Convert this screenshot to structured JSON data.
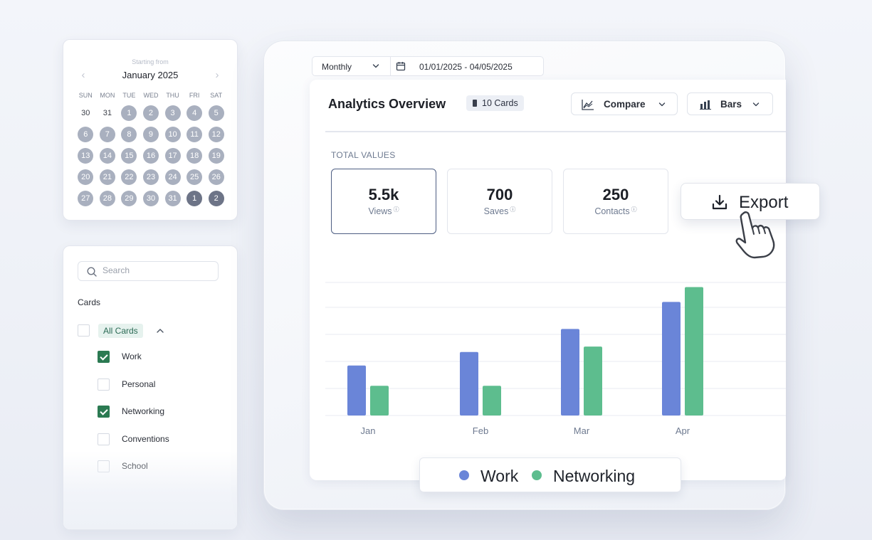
{
  "calendar": {
    "subtitle": "Starting from",
    "month_label": "January 2025",
    "weekdays": [
      "SUN",
      "MON",
      "TUE",
      "WED",
      "THU",
      "FRI",
      "SAT"
    ],
    "days": [
      {
        "d": "30",
        "state": "out"
      },
      {
        "d": "31",
        "state": "out"
      },
      {
        "d": "1",
        "state": "in"
      },
      {
        "d": "2",
        "state": "in"
      },
      {
        "d": "3",
        "state": "in"
      },
      {
        "d": "4",
        "state": "in"
      },
      {
        "d": "5",
        "state": "in"
      },
      {
        "d": "6",
        "state": "in"
      },
      {
        "d": "7",
        "state": "in"
      },
      {
        "d": "8",
        "state": "in"
      },
      {
        "d": "9",
        "state": "in"
      },
      {
        "d": "10",
        "state": "in"
      },
      {
        "d": "11",
        "state": "in"
      },
      {
        "d": "12",
        "state": "in"
      },
      {
        "d": "13",
        "state": "in"
      },
      {
        "d": "14",
        "state": "in"
      },
      {
        "d": "15",
        "state": "in"
      },
      {
        "d": "16",
        "state": "in"
      },
      {
        "d": "17",
        "state": "in"
      },
      {
        "d": "18",
        "state": "in"
      },
      {
        "d": "19",
        "state": "in"
      },
      {
        "d": "20",
        "state": "in"
      },
      {
        "d": "21",
        "state": "in"
      },
      {
        "d": "22",
        "state": "in"
      },
      {
        "d": "23",
        "state": "in"
      },
      {
        "d": "24",
        "state": "in"
      },
      {
        "d": "25",
        "state": "in"
      },
      {
        "d": "26",
        "state": "in"
      },
      {
        "d": "27",
        "state": "in"
      },
      {
        "d": "28",
        "state": "in"
      },
      {
        "d": "29",
        "state": "in"
      },
      {
        "d": "30",
        "state": "in"
      },
      {
        "d": "31",
        "state": "in"
      },
      {
        "d": "1",
        "state": "sel"
      },
      {
        "d": "2",
        "state": "sel"
      }
    ]
  },
  "filter": {
    "search_placeholder": "Search",
    "heading": "Cards",
    "all_label": "All Cards",
    "options": [
      {
        "label": "Work",
        "checked": true
      },
      {
        "label": "Personal",
        "checked": false
      },
      {
        "label": "Networking",
        "checked": true
      },
      {
        "label": "Conventions",
        "checked": false
      },
      {
        "label": "School",
        "checked": false
      }
    ]
  },
  "toolbar": {
    "period": "Monthly",
    "date_range": "01/01/2025 - 04/05/2025"
  },
  "panel": {
    "title": "Analytics Overview",
    "badge": "10 Cards",
    "compare_label": "Compare",
    "view_label": "Bars",
    "section_label": "TOTAL VALUES"
  },
  "stats": [
    {
      "value": "5.5k",
      "label": "Views"
    },
    {
      "value": "700",
      "label": "Saves"
    },
    {
      "value": "250",
      "label": "Contacts"
    }
  ],
  "export_label": "Export",
  "colors": {
    "work": "#6a85d8",
    "networking": "#5dbd8e",
    "accent": "#2b7a52"
  },
  "chart_data": {
    "type": "bar",
    "categories": [
      "Jan",
      "Feb",
      "Mar",
      "Apr"
    ],
    "series": [
      {
        "name": "Work",
        "values": [
          37,
          47,
          64,
          84
        ]
      },
      {
        "name": "Networking",
        "values": [
          22,
          22,
          51,
          95
        ]
      }
    ],
    "ylim": [
      0,
      100
    ],
    "grid": true
  }
}
